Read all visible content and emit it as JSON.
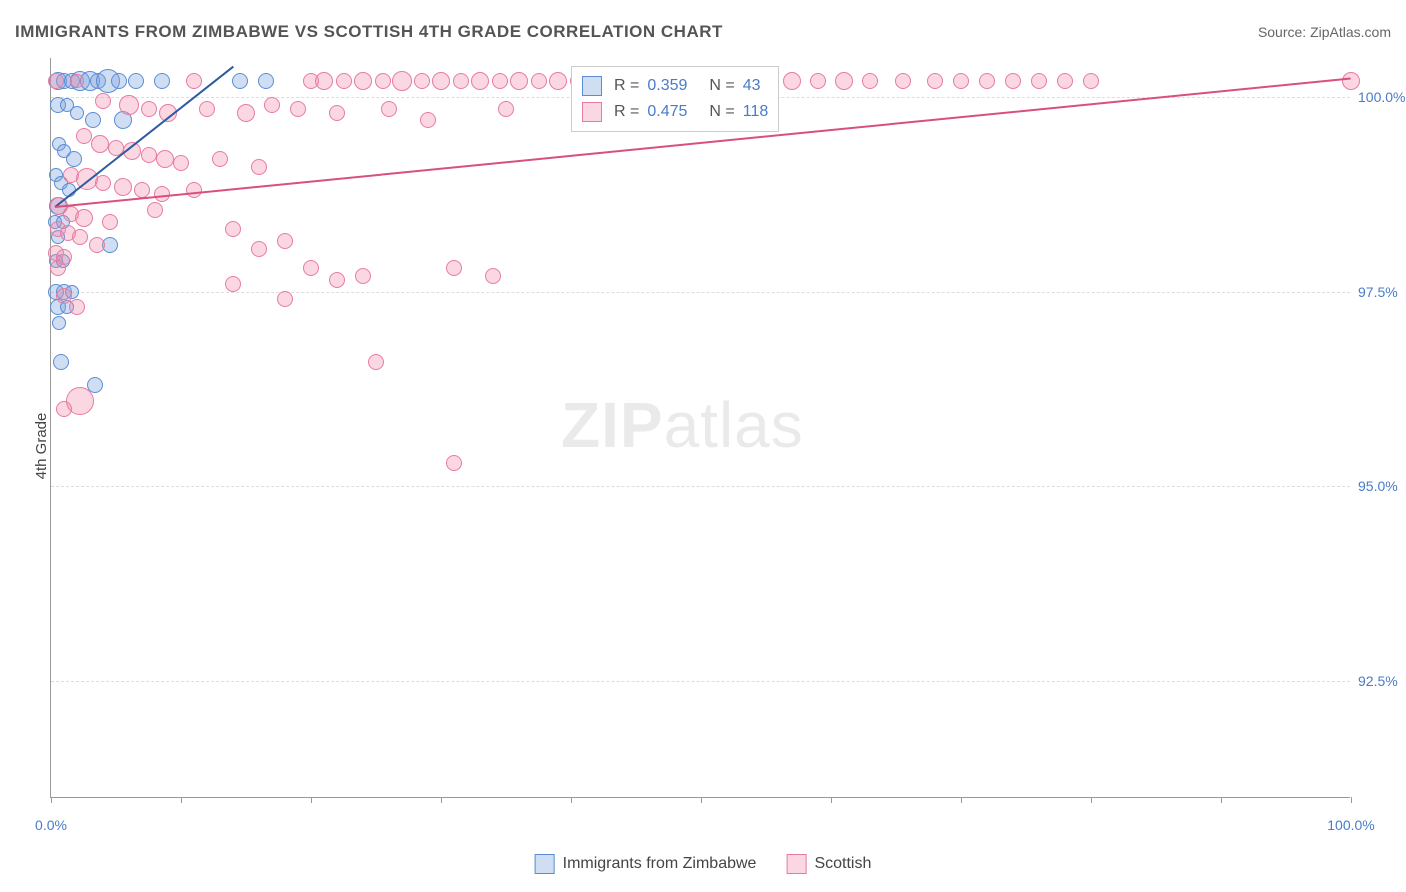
{
  "title": "IMMIGRANTS FROM ZIMBABWE VS SCOTTISH 4TH GRADE CORRELATION CHART",
  "source_prefix": "Source: ",
  "source_name": "ZipAtlas.com",
  "ylabel": "4th Grade",
  "watermark_a": "ZIP",
  "watermark_b": "atlas",
  "chart": {
    "type": "scatter",
    "xlim": [
      0,
      100
    ],
    "ylim": [
      91.0,
      100.5
    ],
    "xticks": [
      0,
      10,
      20,
      30,
      40,
      50,
      60,
      70,
      80,
      90,
      100
    ],
    "xtick_labels": {
      "0": "0.0%",
      "100": "100.0%"
    },
    "yticks": [
      92.5,
      95.0,
      97.5,
      100.0
    ],
    "ytick_labels": [
      "92.5%",
      "95.0%",
      "97.5%",
      "100.0%"
    ],
    "grid_color": "#dddddd",
    "background_color": "#ffffff",
    "axis_color": "#999999",
    "label_color": "#4a7bc8"
  },
  "series": [
    {
      "key": "zimbabwe",
      "label": "Immigrants from Zimbabwe",
      "fill": "rgba(120,160,220,0.35)",
      "stroke": "#5b8dd6",
      "trend_color": "#2e5aa0",
      "trend": {
        "x1": 0.3,
        "y1": 98.6,
        "x2": 14,
        "y2": 100.4
      },
      "R": "0.359",
      "N": "43",
      "points": [
        {
          "x": 0.5,
          "y": 100.2,
          "r": 9
        },
        {
          "x": 1.0,
          "y": 100.2,
          "r": 8
        },
        {
          "x": 1.6,
          "y": 100.2,
          "r": 8
        },
        {
          "x": 2.2,
          "y": 100.2,
          "r": 10
        },
        {
          "x": 3.0,
          "y": 100.2,
          "r": 10
        },
        {
          "x": 3.6,
          "y": 100.2,
          "r": 8
        },
        {
          "x": 4.4,
          "y": 100.2,
          "r": 12
        },
        {
          "x": 5.2,
          "y": 100.2,
          "r": 8
        },
        {
          "x": 6.5,
          "y": 100.2,
          "r": 8
        },
        {
          "x": 8.5,
          "y": 100.2,
          "r": 8
        },
        {
          "x": 14.5,
          "y": 100.2,
          "r": 8
        },
        {
          "x": 16.5,
          "y": 100.2,
          "r": 8
        },
        {
          "x": 0.5,
          "y": 99.9,
          "r": 8
        },
        {
          "x": 1.2,
          "y": 99.9,
          "r": 7
        },
        {
          "x": 2.0,
          "y": 99.8,
          "r": 7
        },
        {
          "x": 3.2,
          "y": 99.7,
          "r": 8
        },
        {
          "x": 5.5,
          "y": 99.7,
          "r": 9
        },
        {
          "x": 0.6,
          "y": 99.4,
          "r": 7
        },
        {
          "x": 1.0,
          "y": 99.3,
          "r": 7
        },
        {
          "x": 1.8,
          "y": 99.2,
          "r": 8
        },
        {
          "x": 0.4,
          "y": 99.0,
          "r": 7
        },
        {
          "x": 0.8,
          "y": 98.9,
          "r": 7
        },
        {
          "x": 1.4,
          "y": 98.8,
          "r": 7
        },
        {
          "x": 0.5,
          "y": 98.6,
          "r": 9
        },
        {
          "x": 0.3,
          "y": 98.4,
          "r": 7
        },
        {
          "x": 0.9,
          "y": 98.4,
          "r": 7
        },
        {
          "x": 0.5,
          "y": 98.2,
          "r": 7
        },
        {
          "x": 4.5,
          "y": 98.1,
          "r": 8
        },
        {
          "x": 0.4,
          "y": 97.9,
          "r": 7
        },
        {
          "x": 0.9,
          "y": 97.9,
          "r": 7
        },
        {
          "x": 0.4,
          "y": 97.5,
          "r": 8
        },
        {
          "x": 1.0,
          "y": 97.5,
          "r": 8
        },
        {
          "x": 1.6,
          "y": 97.5,
          "r": 7
        },
        {
          "x": 0.5,
          "y": 97.3,
          "r": 8
        },
        {
          "x": 1.2,
          "y": 97.3,
          "r": 7
        },
        {
          "x": 0.6,
          "y": 97.1,
          "r": 7
        },
        {
          "x": 0.8,
          "y": 96.6,
          "r": 8
        },
        {
          "x": 3.4,
          "y": 96.3,
          "r": 8
        }
      ]
    },
    {
      "key": "scottish",
      "label": "Scottish",
      "fill": "rgba(240,140,170,0.35)",
      "stroke": "#e87ba2",
      "trend_color": "#d94f7e",
      "trend": {
        "x1": 0.3,
        "y1": 98.6,
        "x2": 100,
        "y2": 100.25
      },
      "R": "0.475",
      "N": "118",
      "points": [
        {
          "x": 0.4,
          "y": 100.2,
          "r": 8
        },
        {
          "x": 2.0,
          "y": 100.2,
          "r": 7
        },
        {
          "x": 11,
          "y": 100.2,
          "r": 8
        },
        {
          "x": 20,
          "y": 100.2,
          "r": 8
        },
        {
          "x": 21,
          "y": 100.2,
          "r": 9
        },
        {
          "x": 22.5,
          "y": 100.2,
          "r": 8
        },
        {
          "x": 24,
          "y": 100.2,
          "r": 9
        },
        {
          "x": 25.5,
          "y": 100.2,
          "r": 8
        },
        {
          "x": 27,
          "y": 100.2,
          "r": 10
        },
        {
          "x": 28.5,
          "y": 100.2,
          "r": 8
        },
        {
          "x": 30,
          "y": 100.2,
          "r": 9
        },
        {
          "x": 31.5,
          "y": 100.2,
          "r": 8
        },
        {
          "x": 33,
          "y": 100.2,
          "r": 9
        },
        {
          "x": 34.5,
          "y": 100.2,
          "r": 8
        },
        {
          "x": 36,
          "y": 100.2,
          "r": 9
        },
        {
          "x": 37.5,
          "y": 100.2,
          "r": 8
        },
        {
          "x": 39,
          "y": 100.2,
          "r": 9
        },
        {
          "x": 40.5,
          "y": 100.2,
          "r": 8
        },
        {
          "x": 42.5,
          "y": 100.2,
          "r": 9
        },
        {
          "x": 44,
          "y": 100.2,
          "r": 8
        },
        {
          "x": 45.5,
          "y": 100.2,
          "r": 9
        },
        {
          "x": 47,
          "y": 100.2,
          "r": 8
        },
        {
          "x": 48.5,
          "y": 100.2,
          "r": 7
        },
        {
          "x": 50,
          "y": 100.2,
          "r": 9
        },
        {
          "x": 51.5,
          "y": 100.2,
          "r": 8
        },
        {
          "x": 53,
          "y": 100.2,
          "r": 9
        },
        {
          "x": 55,
          "y": 100.2,
          "r": 8
        },
        {
          "x": 57,
          "y": 100.2,
          "r": 9
        },
        {
          "x": 59,
          "y": 100.2,
          "r": 8
        },
        {
          "x": 61,
          "y": 100.2,
          "r": 9
        },
        {
          "x": 63,
          "y": 100.2,
          "r": 8
        },
        {
          "x": 65.5,
          "y": 100.2,
          "r": 8
        },
        {
          "x": 68,
          "y": 100.2,
          "r": 8
        },
        {
          "x": 70,
          "y": 100.2,
          "r": 8
        },
        {
          "x": 72,
          "y": 100.2,
          "r": 8
        },
        {
          "x": 74,
          "y": 100.2,
          "r": 8
        },
        {
          "x": 76,
          "y": 100.2,
          "r": 8
        },
        {
          "x": 78,
          "y": 100.2,
          "r": 8
        },
        {
          "x": 80,
          "y": 100.2,
          "r": 8
        },
        {
          "x": 100,
          "y": 100.2,
          "r": 9
        },
        {
          "x": 4,
          "y": 99.95,
          "r": 8
        },
        {
          "x": 6,
          "y": 99.9,
          "r": 10
        },
        {
          "x": 7.5,
          "y": 99.85,
          "r": 8
        },
        {
          "x": 9,
          "y": 99.8,
          "r": 9
        },
        {
          "x": 12,
          "y": 99.85,
          "r": 8
        },
        {
          "x": 15,
          "y": 99.8,
          "r": 9
        },
        {
          "x": 17,
          "y": 99.9,
          "r": 8
        },
        {
          "x": 19,
          "y": 99.85,
          "r": 8
        },
        {
          "x": 22,
          "y": 99.8,
          "r": 8
        },
        {
          "x": 26,
          "y": 99.85,
          "r": 8
        },
        {
          "x": 29,
          "y": 99.7,
          "r": 8
        },
        {
          "x": 35,
          "y": 99.85,
          "r": 8
        },
        {
          "x": 2.5,
          "y": 99.5,
          "r": 8
        },
        {
          "x": 3.8,
          "y": 99.4,
          "r": 9
        },
        {
          "x": 5.0,
          "y": 99.35,
          "r": 8
        },
        {
          "x": 6.2,
          "y": 99.3,
          "r": 9
        },
        {
          "x": 7.5,
          "y": 99.25,
          "r": 8
        },
        {
          "x": 8.8,
          "y": 99.2,
          "r": 9
        },
        {
          "x": 10,
          "y": 99.15,
          "r": 8
        },
        {
          "x": 13,
          "y": 99.2,
          "r": 8
        },
        {
          "x": 16,
          "y": 99.1,
          "r": 8
        },
        {
          "x": 1.5,
          "y": 99.0,
          "r": 8
        },
        {
          "x": 2.8,
          "y": 98.95,
          "r": 11
        },
        {
          "x": 4.0,
          "y": 98.9,
          "r": 8
        },
        {
          "x": 5.5,
          "y": 98.85,
          "r": 9
        },
        {
          "x": 7.0,
          "y": 98.8,
          "r": 8
        },
        {
          "x": 8.5,
          "y": 98.75,
          "r": 8
        },
        {
          "x": 11,
          "y": 98.8,
          "r": 8
        },
        {
          "x": 0.6,
          "y": 98.6,
          "r": 9
        },
        {
          "x": 1.5,
          "y": 98.5,
          "r": 8
        },
        {
          "x": 2.5,
          "y": 98.45,
          "r": 9
        },
        {
          "x": 4.5,
          "y": 98.4,
          "r": 8
        },
        {
          "x": 8,
          "y": 98.55,
          "r": 8
        },
        {
          "x": 0.5,
          "y": 98.3,
          "r": 8
        },
        {
          "x": 1.3,
          "y": 98.25,
          "r": 8
        },
        {
          "x": 2.2,
          "y": 98.2,
          "r": 8
        },
        {
          "x": 3.5,
          "y": 98.1,
          "r": 8
        },
        {
          "x": 0.4,
          "y": 98.0,
          "r": 8
        },
        {
          "x": 1.0,
          "y": 97.95,
          "r": 8
        },
        {
          "x": 0.5,
          "y": 97.8,
          "r": 8
        },
        {
          "x": 14,
          "y": 98.3,
          "r": 8
        },
        {
          "x": 16,
          "y": 98.05,
          "r": 8
        },
        {
          "x": 18,
          "y": 98.15,
          "r": 8
        },
        {
          "x": 20,
          "y": 97.8,
          "r": 8
        },
        {
          "x": 22,
          "y": 97.65,
          "r": 8
        },
        {
          "x": 24,
          "y": 97.7,
          "r": 8
        },
        {
          "x": 31,
          "y": 97.8,
          "r": 8
        },
        {
          "x": 34,
          "y": 97.7,
          "r": 8
        },
        {
          "x": 14,
          "y": 97.6,
          "r": 8
        },
        {
          "x": 18,
          "y": 97.4,
          "r": 8
        },
        {
          "x": 1.0,
          "y": 97.45,
          "r": 8
        },
        {
          "x": 2.0,
          "y": 97.3,
          "r": 8
        },
        {
          "x": 25,
          "y": 96.6,
          "r": 8
        },
        {
          "x": 31,
          "y": 95.3,
          "r": 8
        },
        {
          "x": 2.2,
          "y": 96.1,
          "r": 14
        },
        {
          "x": 1.0,
          "y": 96.0,
          "r": 8
        }
      ]
    }
  ],
  "legend": {
    "r_label": "R =",
    "n_label": "N ="
  },
  "bottom_legend": [
    {
      "label": "Immigrants from Zimbabwe",
      "fill": "rgba(120,160,220,0.35)",
      "stroke": "#5b8dd6"
    },
    {
      "label": "Scottish",
      "fill": "rgba(240,140,170,0.35)",
      "stroke": "#e87ba2"
    }
  ]
}
